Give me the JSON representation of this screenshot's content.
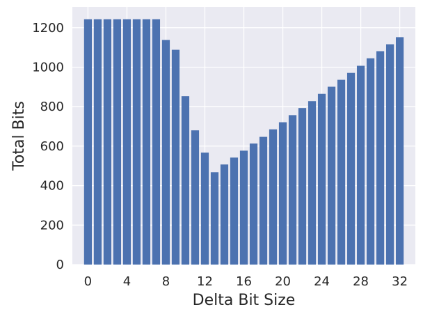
{
  "chart_data": {
    "type": "bar",
    "xlabel": "Delta Bit Size",
    "ylabel": "Total Bits",
    "x": [
      0,
      1,
      2,
      3,
      4,
      5,
      6,
      7,
      8,
      9,
      10,
      11,
      12,
      13,
      14,
      15,
      16,
      17,
      18,
      19,
      20,
      21,
      22,
      23,
      24,
      25,
      26,
      27,
      28,
      29,
      30,
      31,
      32
    ],
    "values": [
      1243,
      1243,
      1243,
      1243,
      1243,
      1243,
      1243,
      1243,
      1138,
      1088,
      853,
      680,
      567,
      468,
      507,
      542,
      577,
      613,
      647,
      685,
      721,
      757,
      793,
      828,
      865,
      901,
      936,
      971,
      1007,
      1045,
      1081,
      1116,
      1152
    ],
    "xticks": [
      0,
      4,
      8,
      12,
      16,
      20,
      24,
      28,
      32
    ],
    "xtick_labels": [
      "0",
      "4",
      "8",
      "12",
      "16",
      "20",
      "24",
      "28",
      "32"
    ],
    "yticks": [
      0,
      200,
      400,
      600,
      800,
      1000,
      1200
    ],
    "ytick_labels": [
      "0",
      "200",
      "400",
      "600",
      "800",
      "1000",
      "1200"
    ],
    "xlim": [
      -1.6,
      33.6
    ],
    "ylim": [
      0,
      1305
    ],
    "grid": true,
    "colors": {
      "bar": "#4c72b0",
      "plot_bg": "#eaeaf2",
      "grid": "#ffffff"
    }
  }
}
